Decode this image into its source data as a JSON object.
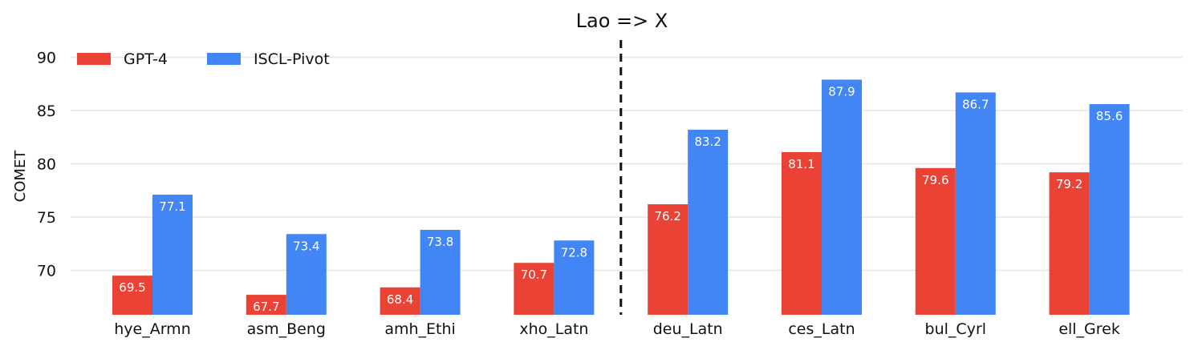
{
  "chart_data": {
    "type": "bar",
    "title": "Lao => X",
    "xlabel": "",
    "ylabel": "COMET",
    "ylim": [
      65.7,
      92.0
    ],
    "yticks": [
      70,
      75,
      80,
      85,
      90
    ],
    "grid": true,
    "legend_position": "top-left",
    "divider_after_category_index": 3,
    "categories": [
      "hye_Armn",
      "asm_Beng",
      "amh_Ethi",
      "xho_Latn",
      "deu_Latn",
      "ces_Latn",
      "bul_Cyrl",
      "ell_Grek"
    ],
    "series": [
      {
        "name": "GPT-4",
        "color": "#ea4335",
        "values": [
          69.5,
          67.7,
          68.4,
          70.7,
          76.2,
          81.1,
          79.6,
          79.2
        ]
      },
      {
        "name": "ISCL-Pivot",
        "color": "#4285f4",
        "values": [
          77.1,
          73.4,
          73.8,
          72.8,
          83.2,
          87.9,
          86.7,
          85.6
        ]
      }
    ]
  }
}
